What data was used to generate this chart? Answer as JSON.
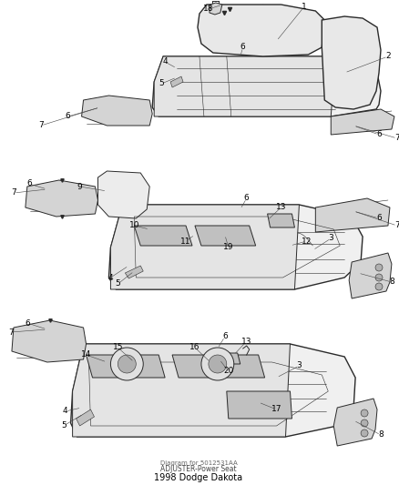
{
  "title": "1998 Dodge Dakota",
  "subtitle": "ADJUSTER-Power Seat",
  "part_number": "Diagram for 5012531AA",
  "bg_color": "#ffffff",
  "line_color": "#2a2a2a",
  "label_color": "#000000",
  "fig_width": 4.39,
  "fig_height": 5.33,
  "dpi": 100,
  "title_fontsize": 7,
  "label_fontsize": 6.5,
  "leader_lw": 0.4,
  "leader_color": "#444444"
}
